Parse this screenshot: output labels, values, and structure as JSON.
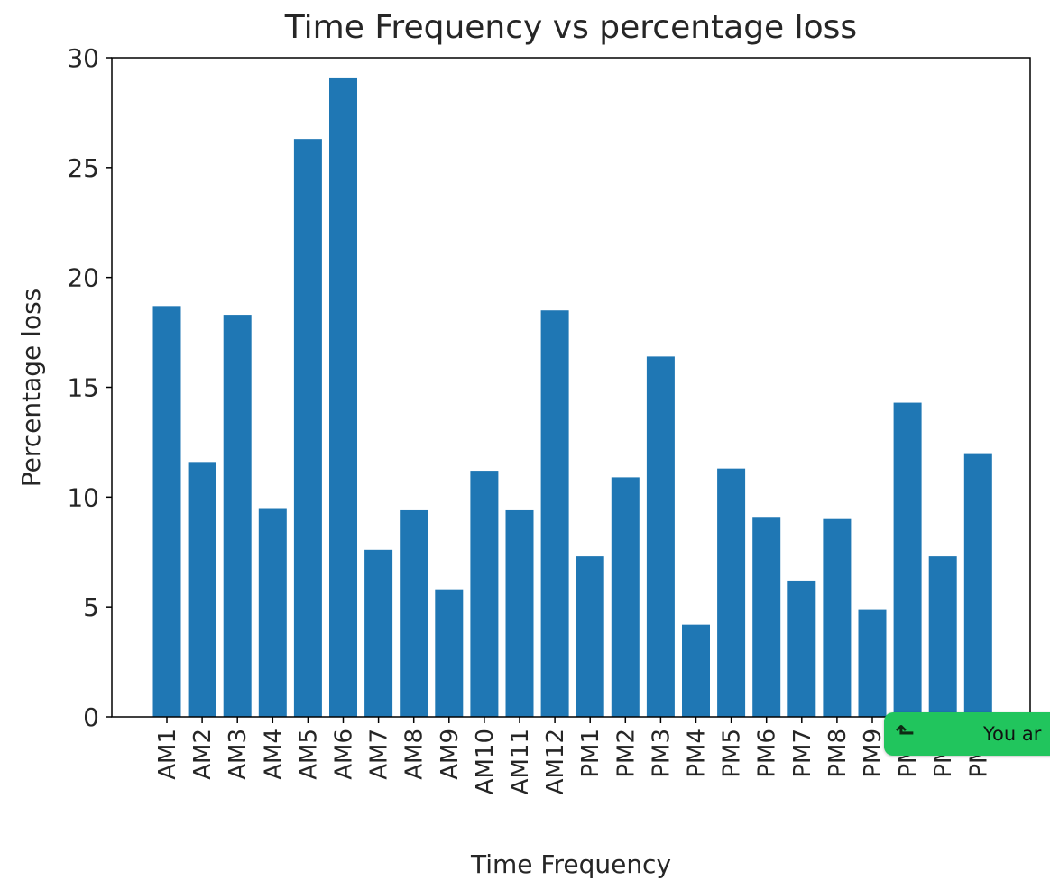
{
  "chart_data": {
    "type": "bar",
    "title": "Time Frequency vs percentage loss",
    "xlabel": "Time Frequency",
    "ylabel": "Percentage loss",
    "ylim": [
      0,
      30
    ],
    "yticks": [
      0,
      5,
      10,
      15,
      20,
      25,
      30
    ],
    "grid": false,
    "bar_color": "#1f77b4",
    "categories": [
      "AM1",
      "AM2",
      "AM3",
      "AM4",
      "AM5",
      "AM6",
      "AM7",
      "AM8",
      "AM9",
      "AM10",
      "AM11",
      "AM12",
      "PM1",
      "PM2",
      "PM3",
      "PM4",
      "PM5",
      "PM6",
      "PM7",
      "PM8",
      "PM9",
      "PM1",
      "PM1",
      "PM1"
    ],
    "values": [
      18.7,
      11.6,
      18.3,
      9.5,
      26.3,
      29.1,
      7.6,
      9.4,
      5.8,
      11.2,
      9.4,
      18.5,
      7.3,
      10.9,
      16.4,
      4.2,
      11.3,
      9.1,
      6.2,
      9.0,
      4.9,
      14.3,
      7.3,
      12.0
    ]
  },
  "toast": {
    "icon": "arrow-icon",
    "text": "You ar"
  }
}
